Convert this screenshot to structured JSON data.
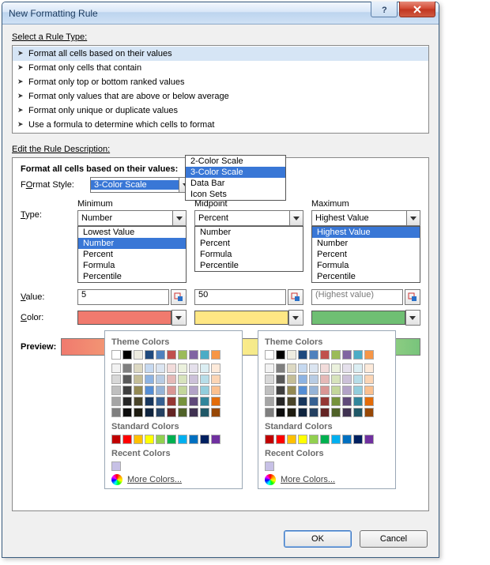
{
  "window": {
    "title": "New Formatting Rule"
  },
  "ruleType": {
    "label": "Select a Rule Type:",
    "items": [
      "Format all cells based on their values",
      "Format only cells that contain",
      "Format only top or bottom ranked values",
      "Format only values that are above or below average",
      "Format only unique or duplicate values",
      "Use a formula to determine which cells to format"
    ],
    "selected_index": 0
  },
  "desc": {
    "label": "Edit the Rule Description:",
    "heading": "Format all cells based on their values:",
    "formatStyle": {
      "label": "Format Style:",
      "value": "3-Color Scale",
      "options": [
        "2-Color Scale",
        "3-Color Scale",
        "Data Bar",
        "Icon Sets"
      ],
      "selected_index": 1
    },
    "columns": {
      "min": {
        "header": "Minimum",
        "type": "Number",
        "options": [
          "Lowest Value",
          "Number",
          "Percent",
          "Formula",
          "Percentile"
        ],
        "sel": 1,
        "value": "5",
        "color": "#f07a6e"
      },
      "mid": {
        "header": "Midpoint",
        "type": "Percent",
        "options": [
          "Number",
          "Percent",
          "Formula",
          "Percentile"
        ],
        "value": "50",
        "color": "#ffe784"
      },
      "max": {
        "header": "Maximum",
        "type": "Highest Value",
        "options": [
          "Highest Value",
          "Number",
          "Percent",
          "Formula",
          "Percentile"
        ],
        "sel": 0,
        "value": "(Highest value)",
        "disabled": true,
        "color": "#6fbf73"
      }
    },
    "rowLabels": {
      "type": "Type:",
      "value": "Value:",
      "color": "Color:"
    },
    "picker": {
      "theme_label": "Theme Colors",
      "standard_label": "Standard Colors",
      "recent_label": "Recent Colors",
      "more": "More Colors...",
      "theme_row1": [
        "#ffffff",
        "#000000",
        "#eeece1",
        "#1f497d",
        "#4f81bd",
        "#c0504d",
        "#9bbb59",
        "#8064a2",
        "#4bacc6",
        "#f79646"
      ],
      "theme_shades": [
        [
          "#f2f2f2",
          "#7f7f7f",
          "#ddd9c3",
          "#c6d9f0",
          "#dbe5f1",
          "#f2dcdb",
          "#ebf1dd",
          "#e5e0ec",
          "#dbeef3",
          "#fdeada"
        ],
        [
          "#d8d8d8",
          "#595959",
          "#c4bd97",
          "#8db3e2",
          "#b8cce4",
          "#e5b9b7",
          "#d7e3bc",
          "#ccc1d9",
          "#b7dde8",
          "#fbd5b5"
        ],
        [
          "#bfbfbf",
          "#3f3f3f",
          "#938953",
          "#548dd4",
          "#95b3d7",
          "#d99694",
          "#c3d69b",
          "#b2a2c7",
          "#92cddc",
          "#fac08f"
        ],
        [
          "#a5a5a5",
          "#262626",
          "#494429",
          "#17365d",
          "#366092",
          "#953734",
          "#76923c",
          "#5f497a",
          "#31859b",
          "#e36c09"
        ],
        [
          "#7f7f7f",
          "#0c0c0c",
          "#1d1b10",
          "#0f243e",
          "#244061",
          "#632423",
          "#4f6128",
          "#3f3151",
          "#205867",
          "#974806"
        ]
      ],
      "standard": [
        "#c00000",
        "#ff0000",
        "#ffc000",
        "#ffff00",
        "#92d050",
        "#00b050",
        "#00b0f0",
        "#0070c0",
        "#002060",
        "#7030a0"
      ],
      "recent": [
        "#c7c1e6"
      ]
    }
  },
  "preview": {
    "label": "Preview:"
  },
  "buttons": {
    "ok": "OK",
    "cancel": "Cancel"
  },
  "letters": {
    "S": "S",
    "E": "E",
    "O": "O",
    "T": "T",
    "V": "V",
    "C": "C",
    "M": "M"
  }
}
